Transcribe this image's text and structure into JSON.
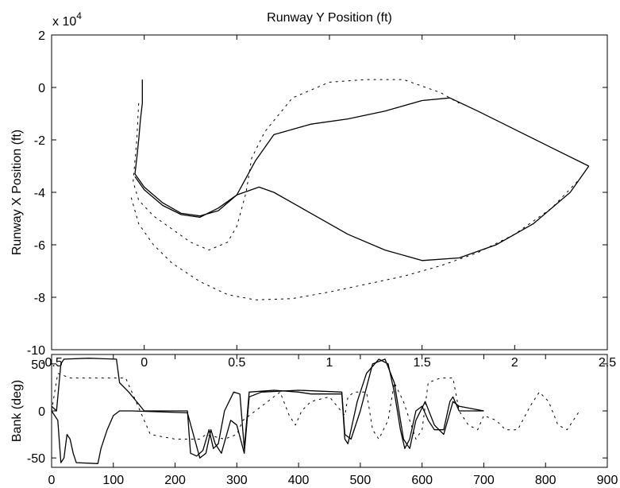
{
  "chart_data": [
    {
      "type": "line",
      "title": "Runway Y Position (ft)",
      "xlabel": "",
      "ylabel": "Runway X Position (ft)",
      "y_exponent_label": "x 10",
      "y_exponent_power": "4",
      "xlim": [
        -0.5,
        2.5
      ],
      "ylim": [
        -10,
        2
      ],
      "xticks": [
        -0.5,
        0,
        0.5,
        1,
        1.5,
        2,
        2.5
      ],
      "xtick_labels": [
        "-0.5",
        "0",
        "0.5",
        "1",
        "1.5",
        "2",
        "2.5"
      ],
      "yticks": [
        2,
        0,
        -2,
        -4,
        -6,
        -8,
        -10
      ],
      "ytick_labels": [
        "2",
        "0",
        "-2",
        "-4",
        "-6",
        "-8",
        "-10"
      ],
      "grid": false,
      "series": [
        {
          "style": "solid",
          "points": [
            [
              -0.01,
              0.3
            ],
            [
              -0.01,
              -0.6
            ],
            [
              -0.02,
              -1.2
            ],
            [
              -0.03,
              -2.0
            ],
            [
              -0.04,
              -2.7
            ],
            [
              -0.05,
              -3.3
            ],
            [
              0.0,
              -3.8
            ],
            [
              0.1,
              -4.4
            ],
            [
              0.2,
              -4.8
            ],
            [
              0.3,
              -4.9
            ],
            [
              0.4,
              -4.7
            ],
            [
              0.5,
              -4.1
            ],
            [
              0.6,
              -2.8
            ],
            [
              0.7,
              -1.8
            ],
            [
              0.9,
              -1.4
            ],
            [
              1.1,
              -1.2
            ],
            [
              1.3,
              -0.9
            ],
            [
              1.5,
              -0.5
            ],
            [
              1.65,
              -0.4
            ],
            [
              1.8,
              -0.9
            ],
            [
              2.0,
              -1.6
            ],
            [
              2.2,
              -2.3
            ],
            [
              2.4,
              -3.0
            ]
          ]
        },
        {
          "style": "solid",
          "points": [
            [
              -0.05,
              -3.4
            ],
            [
              0.0,
              -3.9
            ],
            [
              0.1,
              -4.5
            ],
            [
              0.2,
              -4.85
            ],
            [
              0.3,
              -4.95
            ],
            [
              0.4,
              -4.6
            ],
            [
              0.5,
              -4.1
            ],
            [
              0.62,
              -3.8
            ],
            [
              0.7,
              -4.0
            ],
            [
              0.9,
              -4.8
            ],
            [
              1.1,
              -5.6
            ],
            [
              1.3,
              -6.2
            ],
            [
              1.5,
              -6.6
            ],
            [
              1.7,
              -6.5
            ],
            [
              1.9,
              -6.0
            ],
            [
              2.1,
              -5.2
            ],
            [
              2.3,
              -4.0
            ],
            [
              2.4,
              -3.0
            ]
          ]
        },
        {
          "style": "dashed",
          "points": [
            [
              -0.03,
              -0.6
            ],
            [
              -0.04,
              -2.0
            ],
            [
              -0.06,
              -3.6
            ],
            [
              -0.03,
              -4.3
            ],
            [
              0.05,
              -4.9
            ],
            [
              0.15,
              -5.4
            ],
            [
              0.25,
              -5.9
            ],
            [
              0.35,
              -6.2
            ],
            [
              0.45,
              -5.9
            ],
            [
              0.5,
              -5.3
            ],
            [
              0.55,
              -4.0
            ],
            [
              0.58,
              -2.7
            ],
            [
              0.65,
              -1.7
            ],
            [
              0.8,
              -0.4
            ],
            [
              1.0,
              0.2
            ],
            [
              1.2,
              0.3
            ],
            [
              1.4,
              0.3
            ],
            [
              1.6,
              -0.2
            ],
            [
              1.7,
              -0.6
            ]
          ]
        },
        {
          "style": "dashed",
          "points": [
            [
              -0.07,
              -4.2
            ],
            [
              -0.03,
              -5.2
            ],
            [
              0.05,
              -6.0
            ],
            [
              0.15,
              -6.7
            ],
            [
              0.3,
              -7.4
            ],
            [
              0.45,
              -7.9
            ],
            [
              0.6,
              -8.1
            ],
            [
              0.8,
              -8.05
            ],
            [
              1.0,
              -7.8
            ],
            [
              1.2,
              -7.5
            ],
            [
              1.4,
              -7.2
            ],
            [
              1.6,
              -6.8
            ],
            [
              1.8,
              -6.3
            ],
            [
              2.0,
              -5.6
            ],
            [
              2.2,
              -4.6
            ],
            [
              2.35,
              -3.5
            ]
          ]
        }
      ]
    },
    {
      "type": "line",
      "title": "",
      "xlabel": "",
      "ylabel": "Bank (deg)",
      "xlim": [
        0,
        900
      ],
      "ylim": [
        -60,
        60
      ],
      "xticks": [
        0,
        100,
        200,
        300,
        400,
        500,
        600,
        700,
        800,
        900
      ],
      "xtick_labels": [
        "0",
        "100",
        "200",
        "300",
        "400",
        "500",
        "600",
        "700",
        "800",
        "900"
      ],
      "yticks": [
        50,
        0,
        -50
      ],
      "ytick_labels": [
        "50",
        "0",
        "-50"
      ],
      "grid": false,
      "series": [
        {
          "style": "solid",
          "points": [
            [
              0,
              5
            ],
            [
              8,
              0
            ],
            [
              15,
              50
            ],
            [
              20,
              55
            ],
            [
              60,
              56
            ],
            [
              105,
              55
            ],
            [
              110,
              30
            ],
            [
              125,
              20
            ],
            [
              140,
              8
            ],
            [
              150,
              0
            ],
            [
              220,
              0
            ],
            [
              225,
              -45
            ],
            [
              235,
              -48
            ],
            [
              245,
              -42
            ],
            [
              255,
              -20
            ],
            [
              262,
              -40
            ],
            [
              270,
              -35
            ],
            [
              280,
              0
            ],
            [
              295,
              20
            ],
            [
              305,
              18
            ],
            [
              312,
              -40
            ],
            [
              320,
              20
            ],
            [
              360,
              22
            ],
            [
              400,
              20
            ],
            [
              420,
              18
            ],
            [
              470,
              18
            ],
            [
              475,
              -30
            ],
            [
              480,
              -35
            ],
            [
              495,
              10
            ],
            [
              510,
              40
            ],
            [
              530,
              55
            ],
            [
              545,
              50
            ],
            [
              555,
              20
            ],
            [
              565,
              -20
            ],
            [
              572,
              -40
            ],
            [
              580,
              -30
            ],
            [
              590,
              0
            ],
            [
              600,
              5
            ],
            [
              610,
              -10
            ],
            [
              620,
              -20
            ],
            [
              635,
              -20
            ],
            [
              645,
              10
            ],
            [
              650,
              15
            ],
            [
              660,
              0
            ],
            [
              700,
              0
            ]
          ]
        },
        {
          "style": "solid",
          "points": [
            [
              0,
              0
            ],
            [
              10,
              -10
            ],
            [
              15,
              -55
            ],
            [
              20,
              -50
            ],
            [
              25,
              -25
            ],
            [
              30,
              -30
            ],
            [
              35,
              -45
            ],
            [
              40,
              -55
            ],
            [
              75,
              -56
            ],
            [
              80,
              -40
            ],
            [
              90,
              -20
            ],
            [
              100,
              -5
            ],
            [
              110,
              0
            ],
            [
              130,
              0
            ],
            [
              220,
              -2
            ],
            [
              240,
              -50
            ],
            [
              250,
              -45
            ],
            [
              258,
              -20
            ],
            [
              265,
              -35
            ],
            [
              275,
              -45
            ],
            [
              290,
              -10
            ],
            [
              300,
              -15
            ],
            [
              312,
              -45
            ],
            [
              320,
              15
            ],
            [
              340,
              20
            ],
            [
              400,
              22
            ],
            [
              470,
              20
            ],
            [
              475,
              -25
            ],
            [
              485,
              -30
            ],
            [
              500,
              0
            ],
            [
              520,
              50
            ],
            [
              540,
              55
            ],
            [
              555,
              30
            ],
            [
              570,
              -30
            ],
            [
              580,
              -40
            ],
            [
              590,
              -10
            ],
            [
              605,
              10
            ],
            [
              620,
              -15
            ],
            [
              635,
              -25
            ],
            [
              650,
              10
            ],
            [
              660,
              5
            ],
            [
              700,
              0
            ]
          ]
        },
        {
          "style": "dashed",
          "points": [
            [
              0,
              0
            ],
            [
              10,
              40
            ],
            [
              30,
              35
            ],
            [
              120,
              35
            ],
            [
              140,
              5
            ],
            [
              160,
              -25
            ],
            [
              200,
              -30
            ],
            [
              240,
              -30
            ],
            [
              250,
              -25
            ],
            [
              280,
              -30
            ],
            [
              300,
              -25
            ],
            [
              310,
              -10
            ],
            [
              330,
              0
            ],
            [
              350,
              10
            ],
            [
              370,
              20
            ],
            [
              385,
              -5
            ],
            [
              395,
              -15
            ],
            [
              405,
              0
            ],
            [
              420,
              10
            ],
            [
              450,
              15
            ],
            [
              475,
              -5
            ],
            [
              480,
              15
            ],
            [
              490,
              20
            ],
            [
              510,
              20
            ],
            [
              520,
              -20
            ],
            [
              530,
              -30
            ],
            [
              545,
              -10
            ],
            [
              555,
              30
            ],
            [
              570,
              10
            ],
            [
              590,
              -30
            ],
            [
              600,
              -20
            ],
            [
              610,
              30
            ],
            [
              630,
              35
            ],
            [
              650,
              35
            ],
            [
              660,
              0
            ],
            [
              675,
              -15
            ],
            [
              690,
              -20
            ],
            [
              700,
              -5
            ],
            [
              720,
              -10
            ],
            [
              735,
              -20
            ],
            [
              755,
              -20
            ],
            [
              775,
              5
            ],
            [
              790,
              20
            ],
            [
              805,
              10
            ],
            [
              820,
              -15
            ],
            [
              835,
              -20
            ],
            [
              855,
              0
            ]
          ]
        }
      ]
    }
  ]
}
